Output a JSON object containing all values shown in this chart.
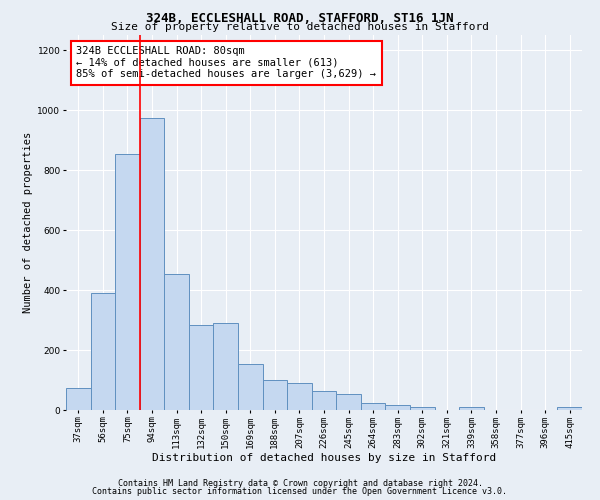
{
  "title": "324B, ECCLESHALL ROAD, STAFFORD, ST16 1JN",
  "subtitle": "Size of property relative to detached houses in Stafford",
  "xlabel": "Distribution of detached houses by size in Stafford",
  "ylabel": "Number of detached properties",
  "footnote1": "Contains HM Land Registry data © Crown copyright and database right 2024.",
  "footnote2": "Contains public sector information licensed under the Open Government Licence v3.0.",
  "categories": [
    "37sqm",
    "56sqm",
    "75sqm",
    "94sqm",
    "113sqm",
    "132sqm",
    "150sqm",
    "169sqm",
    "188sqm",
    "207sqm",
    "226sqm",
    "245sqm",
    "264sqm",
    "283sqm",
    "302sqm",
    "321sqm",
    "339sqm",
    "358sqm",
    "377sqm",
    "396sqm",
    "415sqm"
  ],
  "values": [
    75,
    390,
    855,
    975,
    455,
    285,
    290,
    155,
    100,
    90,
    65,
    55,
    25,
    18,
    10,
    0,
    10,
    0,
    0,
    0,
    10
  ],
  "bar_color": "#c5d8f0",
  "bar_edge_color": "#6090c0",
  "vline_pos": 2.5,
  "vline_color": "red",
  "annotation_text": "324B ECCLESHALL ROAD: 80sqm\n← 14% of detached houses are smaller (613)\n85% of semi-detached houses are larger (3,629) →",
  "annotation_box_color": "white",
  "annotation_box_edge_color": "red",
  "ylim": [
    0,
    1250
  ],
  "yticks": [
    0,
    200,
    400,
    600,
    800,
    1000,
    1200
  ],
  "background_color": "#e8eef5",
  "plot_bg_color": "#e8eef5",
  "grid_color": "white",
  "title_fontsize": 9,
  "subtitle_fontsize": 8,
  "ylabel_fontsize": 7.5,
  "xlabel_fontsize": 8,
  "tick_fontsize": 6.5,
  "annot_fontsize": 7.5,
  "footnote_fontsize": 6
}
